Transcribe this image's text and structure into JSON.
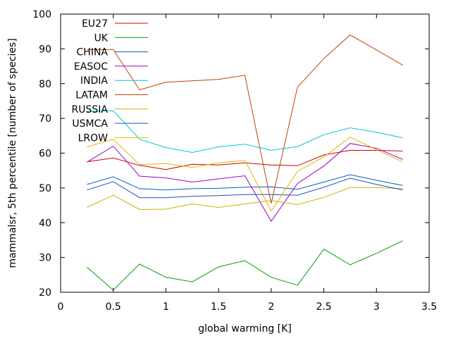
{
  "chart_data": {
    "type": "line",
    "xlabel": "global warming [K]",
    "ylabel": "mammalsr, 5th percentile [number of species]",
    "xlim": [
      0,
      3.5
    ],
    "ylim": [
      20,
      100
    ],
    "xticks": [
      0,
      0.5,
      1,
      1.5,
      2,
      2.5,
      3,
      3.5
    ],
    "xtick_labels": [
      "0",
      "0.5",
      "1",
      "1.5",
      "2",
      "2.5",
      "3",
      "3.5"
    ],
    "yticks": [
      20,
      30,
      40,
      50,
      60,
      70,
      80,
      90,
      100
    ],
    "ytick_labels": [
      "20",
      "30",
      "40",
      "50",
      "60",
      "70",
      "80",
      "90",
      "100"
    ],
    "grid": false,
    "legend_position": "top-left",
    "x": [
      0.25,
      0.5,
      0.75,
      1.0,
      1.25,
      1.5,
      1.75,
      2.0,
      2.25,
      2.5,
      2.75,
      3.0,
      3.25
    ],
    "series": [
      {
        "name": "EU27",
        "color": "#cc0000",
        "values": [
          57.5,
          58.6,
          56.5,
          55.3,
          56.8,
          56.6,
          57.2,
          56.6,
          56.4,
          59.5,
          60.8,
          60.8,
          60.6
        ]
      },
      {
        "name": "UK",
        "color": "#00a000",
        "values": [
          27.2,
          20.6,
          28.1,
          24.3,
          23.0,
          27.3,
          29.1,
          24.3,
          22.0,
          32.4,
          27.9,
          31.2,
          34.8
        ]
      },
      {
        "name": "CHINA",
        "color": "#0060c0",
        "values": [
          51.0,
          53.2,
          49.8,
          49.4,
          49.8,
          49.9,
          50.2,
          50.3,
          49.6,
          51.7,
          53.8,
          52.2,
          50.7
        ]
      },
      {
        "name": "EASOC",
        "color": "#a000c0",
        "values": [
          57.4,
          62.0,
          53.4,
          52.9,
          51.7,
          52.6,
          53.5,
          40.4,
          51.3,
          56.3,
          62.8,
          61.4,
          58.2
        ]
      },
      {
        "name": "INDIA",
        "color": "#00c8c8",
        "values": [
          72.0,
          72.2,
          64.0,
          61.6,
          60.2,
          61.8,
          62.6,
          60.8,
          61.9,
          65.3,
          67.3,
          66.0,
          64.4
        ]
      },
      {
        "name": "LATAM",
        "color": "#c04000",
        "values": [
          89.8,
          89.8,
          78.2,
          80.4,
          80.8,
          81.2,
          82.4,
          45.6,
          79.0,
          87.2,
          94.0,
          89.7,
          85.3
        ]
      },
      {
        "name": "RUSSIA",
        "color": "#c8b400",
        "values": [
          44.4,
          47.9,
          43.8,
          43.9,
          45.4,
          44.4,
          45.4,
          46.4,
          45.2,
          47.3,
          50.1,
          50.1,
          49.8
        ]
      },
      {
        "name": "USMCA",
        "color": "#2050c0",
        "values": [
          49.4,
          51.8,
          47.2,
          47.2,
          47.6,
          47.8,
          48.1,
          48.1,
          47.9,
          50.2,
          52.8,
          51.0,
          49.4
        ]
      },
      {
        "name": "LROW",
        "color": "#e6b400",
        "values": [
          61.8,
          64.0,
          56.7,
          57.0,
          55.9,
          57.2,
          57.9,
          43.4,
          54.8,
          58.9,
          64.6,
          61.0,
          57.5
        ]
      }
    ]
  }
}
